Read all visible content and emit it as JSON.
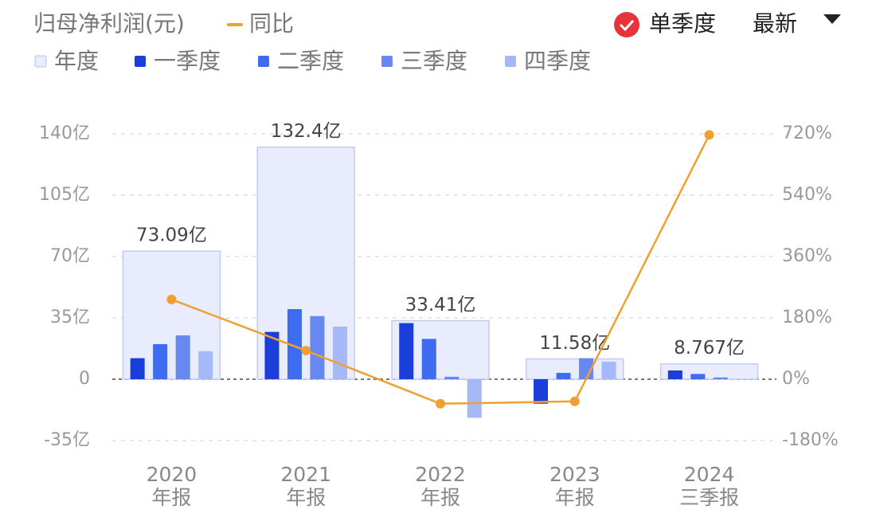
{
  "chart_data": {
    "type": "bar",
    "title": "归母净利润(元)",
    "categories": [
      [
        "2020",
        "年报"
      ],
      [
        "2021",
        "年报"
      ],
      [
        "2022",
        "年报"
      ],
      [
        "2023",
        "年报"
      ],
      [
        "2024",
        "三季报"
      ]
    ],
    "series": [
      {
        "name": "年度",
        "color": "#e9ecfc",
        "values": [
          73.09,
          132.4,
          33.41,
          11.58,
          8.767
        ],
        "value_labels": [
          "73.09亿",
          "132.4亿",
          "33.41亿",
          "11.58亿",
          "8.767亿"
        ]
      },
      {
        "name": "一季度",
        "color": "#1a3fd8",
        "values": [
          12,
          27,
          32,
          -14,
          5
        ]
      },
      {
        "name": "二季度",
        "color": "#3e6cf0",
        "values": [
          20,
          40,
          23,
          3.6,
          3
        ]
      },
      {
        "name": "三季度",
        "color": "#6688f0",
        "values": [
          25,
          36,
          1.4,
          12,
          1
        ]
      },
      {
        "name": "四季度",
        "color": "#a5b8f7",
        "values": [
          16,
          30,
          -22,
          10,
          null
        ]
      },
      {
        "name": "同比",
        "type": "line",
        "axis": "y2",
        "color": "#f0a030",
        "values": [
          234,
          84,
          -72,
          -65,
          717
        ]
      }
    ],
    "ylim": [
      -35,
      140
    ],
    "yticks": [
      {
        "value": -35,
        "label": "-35亿"
      },
      0,
      {
        "value": 35,
        "label": "35亿"
      },
      {
        "value": 70,
        "label": "70亿"
      },
      {
        "value": 105,
        "label": "105亿"
      },
      {
        "value": 140,
        "label": "140亿"
      }
    ],
    "y2lim": [
      -180,
      720
    ],
    "y2ticks": [
      {
        "value": -180,
        "label": "-180%"
      },
      {
        "value": 0,
        "label": "0%"
      },
      {
        "value": 180,
        "label": "180%"
      },
      {
        "value": 360,
        "label": "360%"
      },
      {
        "value": 540,
        "label": "540%"
      },
      {
        "value": 720,
        "label": "720%"
      }
    ],
    "grid": true,
    "controls": {
      "mode": "单季度",
      "sort": "最新"
    }
  }
}
